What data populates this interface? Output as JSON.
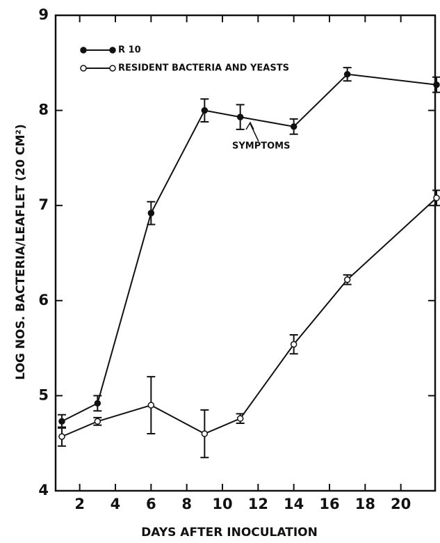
{
  "chart_data": {
    "type": "line",
    "xlabel": "DAYS AFTER INOCULATION",
    "ylabel": "LOG NOS. BACTERIA/LEAFLET (20 CM²)",
    "annotation": "SYMPTOMS",
    "x": [
      1,
      3,
      6,
      9,
      11,
      14,
      17,
      22
    ],
    "series": [
      {
        "name": "R 10",
        "color": "#111",
        "filled": true,
        "values": [
          4.73,
          4.92,
          6.92,
          8.0,
          7.93,
          7.83,
          8.38,
          8.27
        ],
        "errors": [
          0.07,
          0.08,
          0.12,
          0.12,
          0.13,
          0.08,
          0.07,
          0.08
        ]
      },
      {
        "name": "RESIDENT BACTERIA AND YEASTS",
        "color": "#111",
        "filled": false,
        "values": [
          4.57,
          4.73,
          4.9,
          4.6,
          4.76,
          5.54,
          6.22,
          7.08
        ],
        "errors": [
          0.1,
          0.04,
          0.3,
          0.25,
          0.05,
          0.1,
          0.05,
          0.08
        ]
      }
    ],
    "xlim": [
      0.65,
      22
    ],
    "xticks": [
      2,
      4,
      6,
      8,
      10,
      12,
      14,
      16,
      18,
      20
    ],
    "ylim": [
      4,
      9
    ],
    "yticks": [
      4,
      5,
      6,
      7,
      8,
      9
    ]
  }
}
